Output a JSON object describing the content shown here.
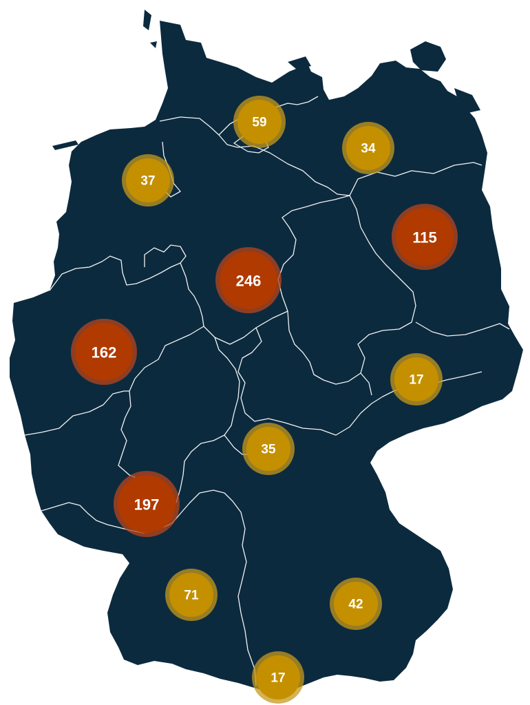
{
  "colors": {
    "land": "#0c2a3e",
    "border": "#ffffff",
    "low": "#c49000",
    "low_ring": "#c79a1c",
    "high": "#b03a00",
    "high_ring": "#b8461c"
  },
  "clusters": [
    {
      "id": "cluster-59",
      "count": "59",
      "level": "low"
    },
    {
      "id": "cluster-34",
      "count": "34",
      "level": "low"
    },
    {
      "id": "cluster-37",
      "count": "37",
      "level": "low"
    },
    {
      "id": "cluster-115",
      "count": "115",
      "level": "high"
    },
    {
      "id": "cluster-246",
      "count": "246",
      "level": "high"
    },
    {
      "id": "cluster-162",
      "count": "162",
      "level": "high"
    },
    {
      "id": "cluster-17a",
      "count": "17",
      "level": "low"
    },
    {
      "id": "cluster-35",
      "count": "35",
      "level": "low"
    },
    {
      "id": "cluster-197",
      "count": "197",
      "level": "high"
    },
    {
      "id": "cluster-71",
      "count": "71",
      "level": "low"
    },
    {
      "id": "cluster-42",
      "count": "42",
      "level": "low"
    },
    {
      "id": "cluster-17b",
      "count": "17",
      "level": "low"
    }
  ]
}
